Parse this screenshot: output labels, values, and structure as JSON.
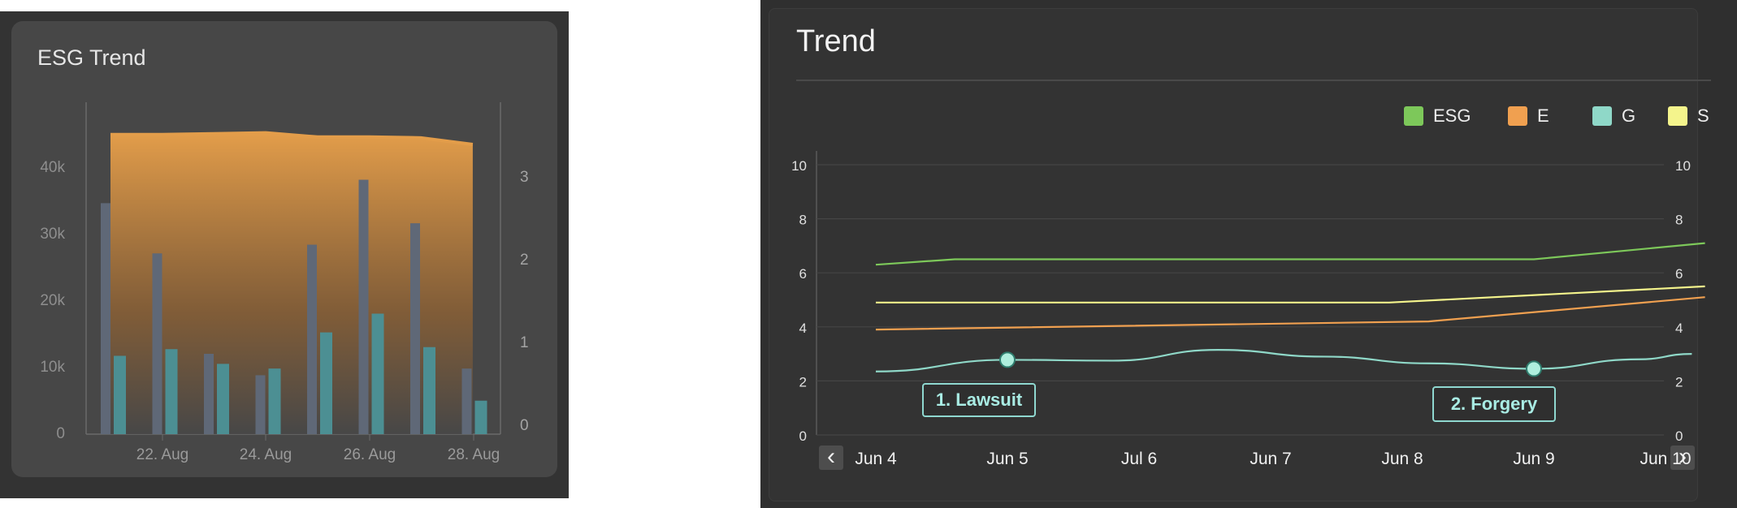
{
  "chart_data": [
    {
      "type": "bar",
      "title": "ESG Trend",
      "x_tick_labels": [
        "22. Aug",
        "24. Aug",
        "26. Aug",
        "28. Aug"
      ],
      "y_left_ticks": [
        "0",
        "10k",
        "20k",
        "30k",
        "40k"
      ],
      "y_right_ticks": [
        "0",
        "1",
        "2",
        "3"
      ],
      "y_left_range": [
        0,
        50000
      ],
      "y_right_range": [
        0,
        4
      ],
      "grid": false,
      "bar_groups": [
        {
          "grey": 34500,
          "teal": 11700
        },
        {
          "grey": 27000,
          "teal": 12700
        },
        {
          "grey": 12000,
          "teal": 10500
        },
        {
          "grey": 8800,
          "teal": 9800
        },
        {
          "grey": 28300,
          "teal": 15200
        },
        {
          "grey": 38000,
          "teal": 18000
        },
        {
          "grey": 31500,
          "teal": 13000
        },
        {
          "grey": 9800,
          "teal": 5000
        }
      ],
      "area_series": [
        3.48,
        3.48,
        3.49,
        3.5,
        3.45,
        3.45,
        3.44,
        3.36
      ],
      "colors": {
        "grey": "#5f6877",
        "teal": "#4c8f93",
        "area_top": "#e39d4a"
      }
    },
    {
      "type": "line",
      "title": "Trend",
      "x_labels": [
        "Jun 4",
        "Jun 5",
        "Jul 6",
        "Jun 7",
        "Jun 8",
        "Jun 9",
        "Jun 10"
      ],
      "y_ticks": [
        "0",
        "2",
        "4",
        "6",
        "8",
        "10"
      ],
      "y_range": [
        0,
        10
      ],
      "grid": true,
      "legend_position": "top-right",
      "series": [
        {
          "name": "ESG",
          "color": "#7dc85a",
          "points": [
            [
              0,
              6.3
            ],
            [
              0.6,
              6.5
            ],
            [
              5.0,
              6.5
            ],
            [
              6.3,
              7.1
            ]
          ]
        },
        {
          "name": "E",
          "color": "#f0a050",
          "points": [
            [
              0,
              3.9
            ],
            [
              4.2,
              4.2
            ],
            [
              6.3,
              5.1
            ]
          ]
        },
        {
          "name": "G",
          "color": "#8fd8c8",
          "points": [
            [
              0,
              2.35
            ],
            [
              1.0,
              2.78
            ],
            [
              1.8,
              2.75
            ],
            [
              2.6,
              3.15
            ],
            [
              3.4,
              2.9
            ],
            [
              4.2,
              2.65
            ],
            [
              5.0,
              2.45
            ],
            [
              5.8,
              2.8
            ],
            [
              6.2,
              3.0
            ]
          ]
        },
        {
          "name": "S",
          "color": "#f4f48c",
          "points": [
            [
              0,
              4.9
            ],
            [
              3.9,
              4.9
            ],
            [
              6.3,
              5.5
            ]
          ]
        }
      ],
      "annotations": [
        {
          "label": "1. Lawsuit",
          "x": 1.0,
          "y": 2.78
        },
        {
          "label": "2. Forgery",
          "x": 5.0,
          "y": 2.45
        }
      ]
    }
  ]
}
